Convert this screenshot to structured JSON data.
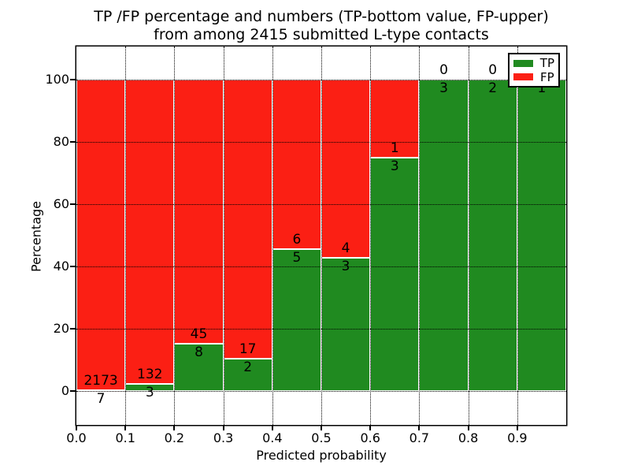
{
  "title": {
    "line1": "TP /FP percentage and numbers (TP-bottom value, FP-upper)",
    "line2": "from among 2415 submitted L-type contacts"
  },
  "chart_data": {
    "type": "bar",
    "stacked": true,
    "normalized": "each bin scaled to 100%",
    "title": "TP /FP percentage and numbers (TP-bottom value, FP-upper) from among 2415 submitted L-type contacts",
    "xlabel": "Predicted probability",
    "ylabel": "Percentage",
    "bins": {
      "starts": [
        0.0,
        0.1,
        0.2,
        0.3,
        0.4,
        0.5,
        0.6,
        0.7,
        0.8,
        0.9
      ],
      "width": 0.1
    },
    "series": [
      {
        "name": "TP",
        "color": "#208a20",
        "counts": [
          7,
          3,
          8,
          2,
          5,
          3,
          3,
          3,
          2,
          1
        ]
      },
      {
        "name": "FP",
        "color": "#fb1f14",
        "counts": [
          2173,
          132,
          45,
          17,
          6,
          4,
          1,
          0,
          0,
          0
        ]
      }
    ],
    "tp_percentages": [
      0.3,
      2.2,
      15.1,
      10.5,
      45.5,
      42.9,
      75.0,
      100.0,
      100.0,
      100.0
    ],
    "x_tick_labels": [
      "0.0",
      "0.1",
      "0.2",
      "0.3",
      "0.4",
      "0.5",
      "0.6",
      "0.7",
      "0.8",
      "0.9"
    ],
    "y_ticks": [
      0,
      20,
      40,
      60,
      80,
      100
    ],
    "xlim": [
      0.0,
      1.0
    ],
    "ylim": [
      -11.5,
      110.5
    ],
    "grid": {
      "style": "dotted",
      "color": "#000000",
      "above_bars": true
    },
    "legend": {
      "position": "upper-right",
      "entries": [
        {
          "label": "TP",
          "color": "#208a20"
        },
        {
          "label": "FP",
          "color": "#fb1f14"
        }
      ]
    }
  }
}
